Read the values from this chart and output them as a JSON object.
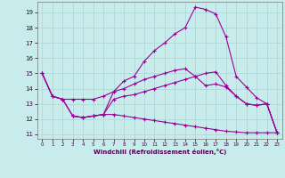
{
  "xlabel": "Windchill (Refroidissement éolien,°C)",
  "background_color": "#c8ecec",
  "line_color": "#990099",
  "grid_color": "#b0d8d8",
  "xlim": [
    -0.5,
    23.5
  ],
  "ylim": [
    10.7,
    19.7
  ],
  "xticks": [
    0,
    1,
    2,
    3,
    4,
    5,
    6,
    7,
    8,
    9,
    10,
    11,
    12,
    13,
    14,
    15,
    16,
    17,
    18,
    19,
    20,
    21,
    22,
    23
  ],
  "yticks": [
    11,
    12,
    13,
    14,
    15,
    16,
    17,
    18,
    19
  ],
  "line1": [
    15.0,
    13.5,
    13.3,
    13.3,
    13.3,
    13.3,
    13.5,
    13.8,
    14.0,
    14.3,
    14.6,
    14.8,
    15.0,
    15.2,
    15.3,
    14.8,
    14.2,
    14.3,
    14.1,
    13.5,
    13.0,
    12.9,
    13.0,
    11.1
  ],
  "line2": [
    15.0,
    13.5,
    13.3,
    12.2,
    12.1,
    12.2,
    12.3,
    13.8,
    14.5,
    14.8,
    15.8,
    16.5,
    17.0,
    17.6,
    18.0,
    19.35,
    19.2,
    18.9,
    17.4,
    14.8,
    14.1,
    13.4,
    13.0,
    11.1
  ],
  "line3": [
    15.0,
    13.5,
    13.3,
    12.2,
    12.1,
    12.2,
    12.3,
    13.3,
    13.5,
    13.6,
    13.8,
    14.0,
    14.2,
    14.4,
    14.6,
    14.8,
    15.0,
    15.1,
    14.2,
    13.5,
    13.0,
    12.9,
    13.0,
    11.1
  ],
  "line4_x": [
    3,
    4,
    5,
    6,
    7,
    8,
    9,
    10,
    11,
    12,
    13,
    14,
    15,
    16,
    17,
    18,
    19,
    20,
    21,
    22,
    23
  ],
  "line4_y": [
    12.2,
    12.1,
    12.2,
    12.3,
    12.3,
    12.2,
    12.1,
    12.0,
    11.9,
    11.8,
    11.7,
    11.6,
    11.5,
    11.4,
    11.3,
    11.2,
    11.15,
    11.1,
    11.1,
    11.1,
    11.1
  ]
}
